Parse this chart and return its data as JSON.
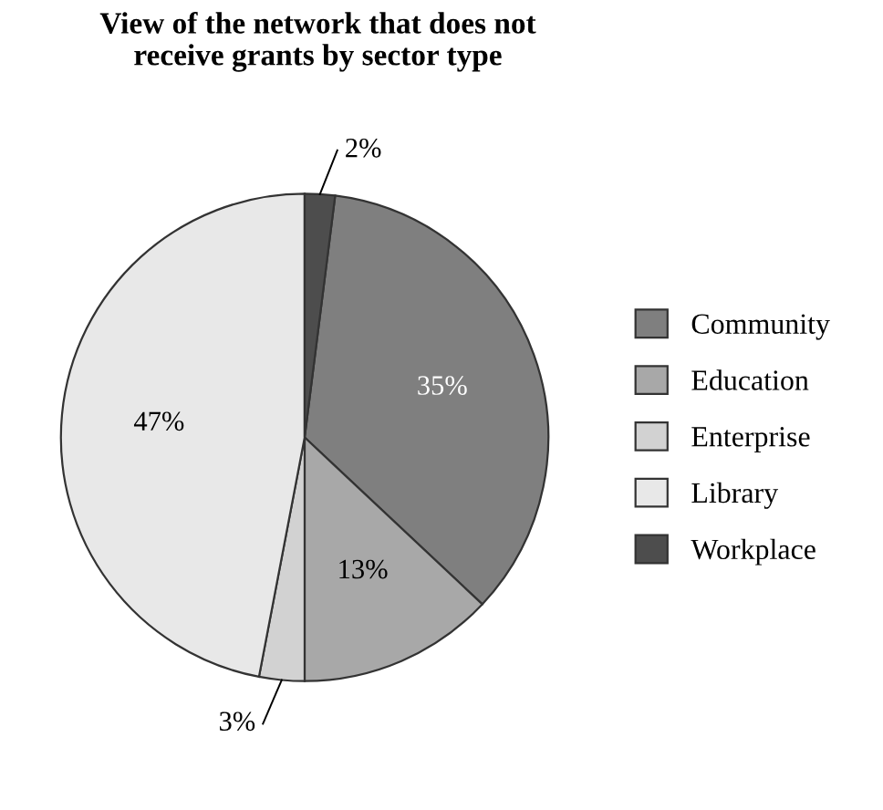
{
  "chart_data": {
    "type": "pie",
    "title": "View of the network that does not\nreceive grants by sector type",
    "categories": [
      "Community",
      "Education",
      "Enterprise",
      "Library",
      "Workplace"
    ],
    "values": [
      35,
      13,
      3,
      47,
      2
    ],
    "value_labels": [
      "35%",
      "13%",
      "3%",
      "47%",
      "2%"
    ],
    "colors": [
      "#7f7f7f",
      "#a8a8a8",
      "#d2d2d2",
      "#e8e8e8",
      "#4d4d4d"
    ],
    "legend": "right"
  }
}
